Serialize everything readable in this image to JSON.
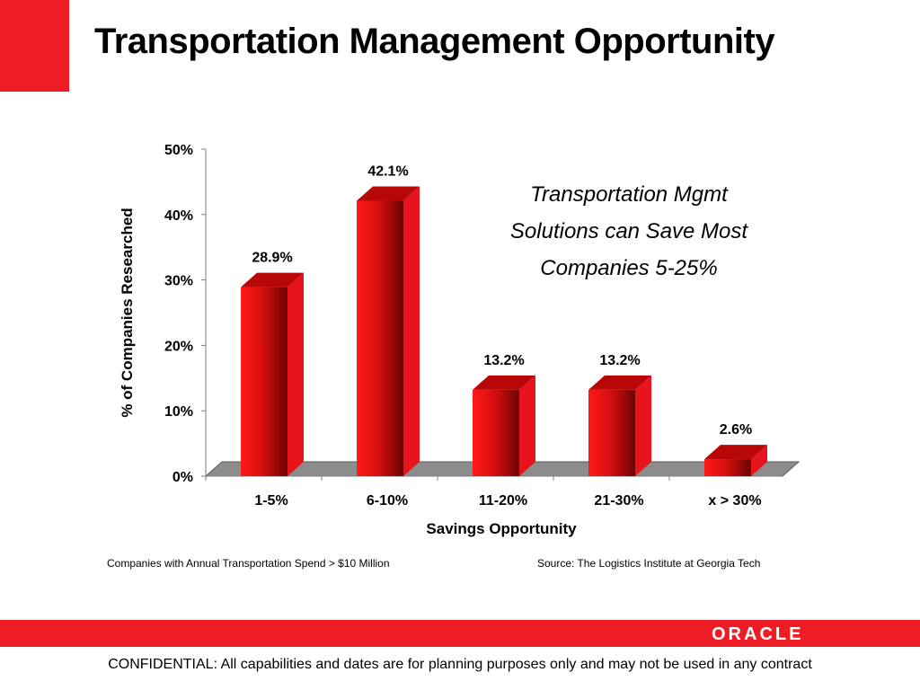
{
  "slide": {
    "title": "Transportation Management Opportunity",
    "callout_lines": [
      "Transportation Mgmt",
      "Solutions can Save Most",
      "Companies 5-25%"
    ],
    "note_left": "Companies with Annual Transportation Spend > $10 Million",
    "note_right": "Source:  The Logistics Institute at Georgia Tech",
    "logo_text": "ORACLE",
    "confidential": "CONFIDENTIAL:  All capabilities and dates are for planning purposes only and may not be used in any contract"
  },
  "colors": {
    "brand_red": "#ee1c25",
    "bar_red": "#e8141c",
    "floor_gray": "#8c8c8c"
  },
  "chart_data": {
    "type": "bar",
    "categories": [
      "1-5%",
      "6-10%",
      "11-20%",
      "21-30%",
      "x > 30%"
    ],
    "values": [
      28.9,
      42.1,
      13.2,
      13.2,
      2.6
    ],
    "data_labels": [
      "28.9%",
      "42.1%",
      "13.2%",
      "13.2%",
      "2.6%"
    ],
    "xlabel": "Savings Opportunity",
    "ylabel": "% of Companies Researched",
    "ylim": [
      0,
      50
    ],
    "yticks": [
      0,
      10,
      20,
      30,
      40,
      50
    ],
    "ytick_labels": [
      "0%",
      "10%",
      "20%",
      "30%",
      "40%",
      "50%"
    ],
    "grid": false,
    "legend": "none",
    "style": "3d"
  }
}
